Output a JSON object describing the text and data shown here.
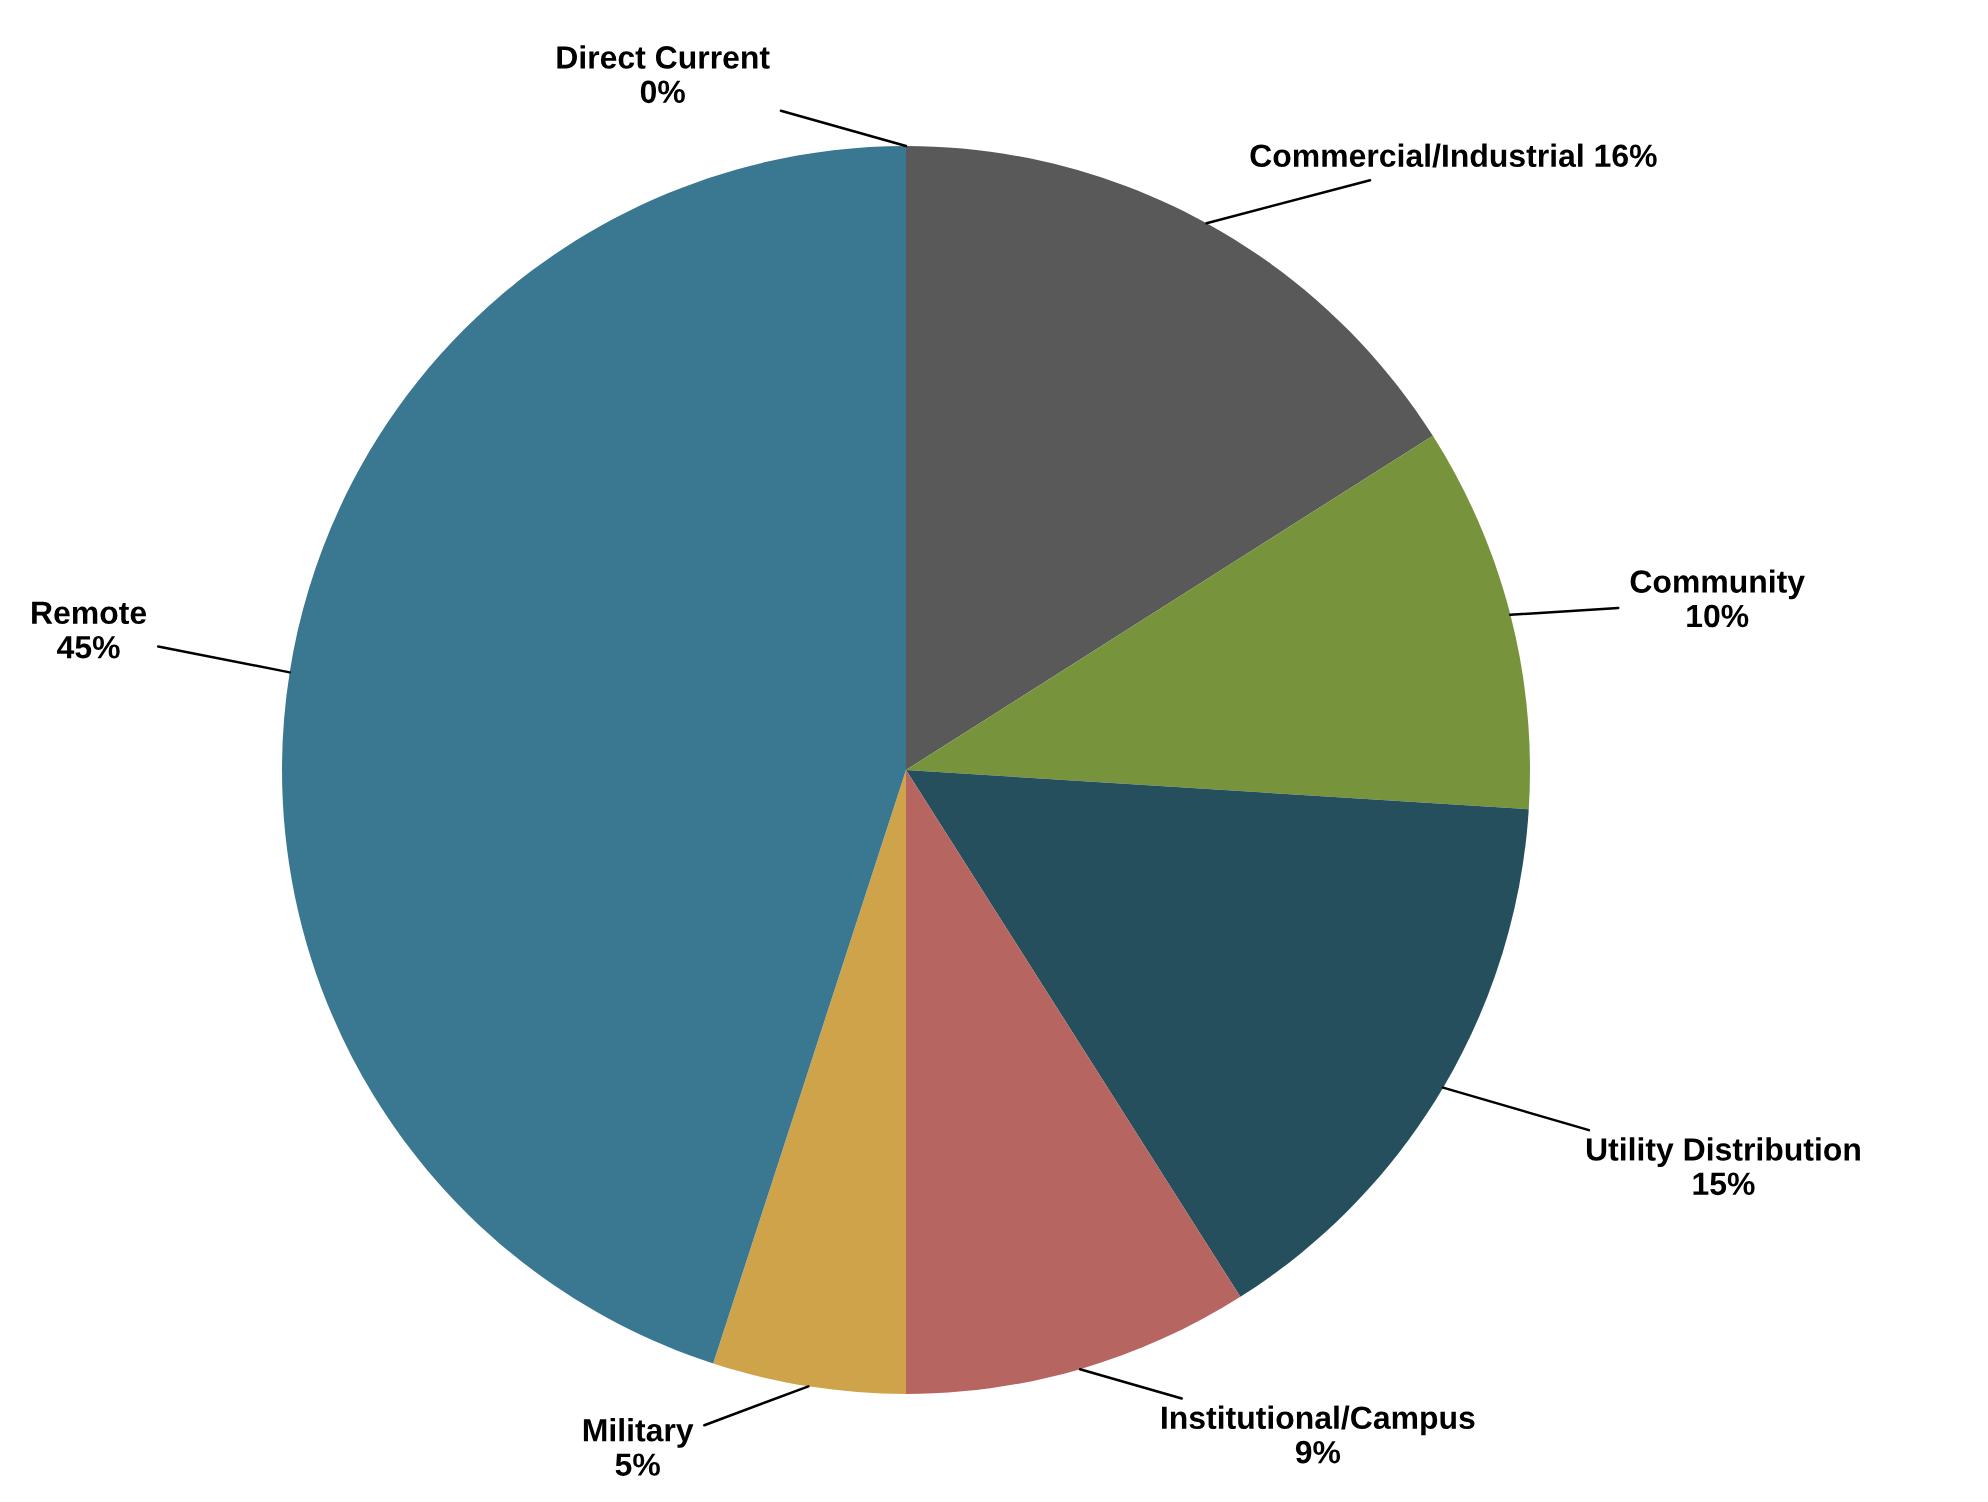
{
  "chart_data": {
    "type": "pie",
    "categories": [
      "Commercial/Industrial",
      "Community",
      "Utility Distribution",
      "Institutional/Campus",
      "Military",
      "Remote",
      "Direct Current"
    ],
    "values": [
      16,
      10,
      15,
      9,
      5,
      45,
      0
    ],
    "value_labels": [
      "16%",
      "10%",
      "15%",
      "9%",
      "5%",
      "45%",
      "0%"
    ],
    "colors": [
      "#595959",
      "#77933c",
      "#254f5c",
      "#b76560",
      "#cfa349",
      "#3a7892",
      "#8064a2"
    ]
  }
}
